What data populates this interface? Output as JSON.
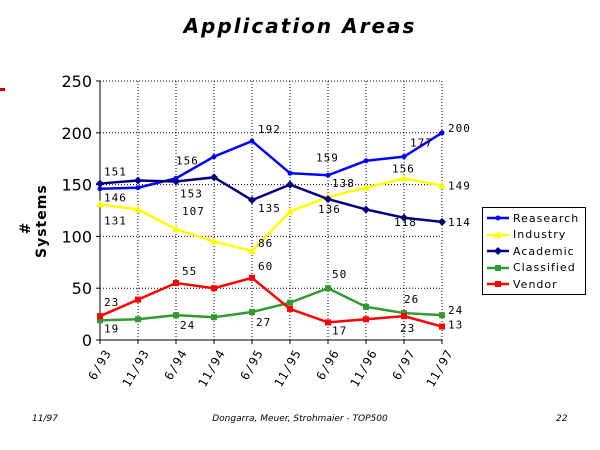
{
  "footer": {
    "left": "11/97",
    "center": "Dongarra, Meuer, Strohmaier - TOP500",
    "right": "22"
  },
  "chart_data": {
    "type": "line",
    "title": "Application Areas",
    "xlabel": "",
    "ylabel": "# Systems",
    "ylim": [
      0,
      250
    ],
    "yticks": [
      0,
      50,
      100,
      150,
      200,
      250
    ],
    "categories": [
      "6/93",
      "11/93",
      "6/94",
      "11/94",
      "6/95",
      "11/95",
      "6/96",
      "11/96",
      "6/97",
      "11/97"
    ],
    "grid": true,
    "legend_position": "right",
    "series": [
      {
        "name": "Reasearch",
        "color": "#0000ff",
        "marker": "circle",
        "values": [
          146,
          147,
          156,
          177,
          192,
          161,
          159,
          173,
          177,
          200
        ]
      },
      {
        "name": "Industry",
        "color": "#ffff00",
        "marker": "triangle",
        "values": [
          131,
          126,
          107,
          95,
          86,
          124,
          138,
          147,
          156,
          149
        ]
      },
      {
        "name": "Academic",
        "color": "#000080",
        "marker": "diamond",
        "values": [
          151,
          154,
          153,
          157,
          135,
          150,
          136,
          126,
          118,
          114
        ]
      },
      {
        "name": "Classified",
        "color": "#339933",
        "marker": "square",
        "values": [
          19,
          20,
          24,
          22,
          27,
          36,
          50,
          32,
          26,
          24
        ]
      },
      {
        "name": "Vendor",
        "color": "#ff0000",
        "marker": "square",
        "values": [
          23,
          39,
          55,
          50,
          60,
          30,
          17,
          20,
          23,
          13
        ]
      }
    ],
    "annotations": [
      {
        "series": 0,
        "index": 0,
        "text": "146"
      },
      {
        "series": 0,
        "index": 2,
        "text": "156"
      },
      {
        "series": 0,
        "index": 4,
        "text": "192"
      },
      {
        "series": 0,
        "index": 6,
        "text": "159"
      },
      {
        "series": 0,
        "index": 8,
        "text": "177"
      },
      {
        "series": 0,
        "index": 9,
        "text": "200"
      },
      {
        "series": 1,
        "index": 0,
        "text": "131"
      },
      {
        "series": 1,
        "index": 2,
        "text": "107"
      },
      {
        "series": 1,
        "index": 4,
        "text": "86"
      },
      {
        "series": 1,
        "index": 6,
        "text": "138"
      },
      {
        "series": 1,
        "index": 8,
        "text": "156"
      },
      {
        "series": 1,
        "index": 9,
        "text": "149"
      },
      {
        "series": 2,
        "index": 0,
        "text": "151"
      },
      {
        "series": 2,
        "index": 2,
        "text": "153"
      },
      {
        "series": 2,
        "index": 4,
        "text": "135"
      },
      {
        "series": 2,
        "index": 6,
        "text": "136"
      },
      {
        "series": 2,
        "index": 8,
        "text": "118"
      },
      {
        "series": 2,
        "index": 9,
        "text": "114"
      },
      {
        "series": 3,
        "index": 0,
        "text": "19"
      },
      {
        "series": 3,
        "index": 2,
        "text": "24"
      },
      {
        "series": 3,
        "index": 4,
        "text": "27"
      },
      {
        "series": 3,
        "index": 6,
        "text": "50"
      },
      {
        "series": 3,
        "index": 8,
        "text": "26"
      },
      {
        "series": 3,
        "index": 9,
        "text": "24"
      },
      {
        "series": 4,
        "index": 0,
        "text": "23"
      },
      {
        "series": 4,
        "index": 2,
        "text": "55"
      },
      {
        "series": 4,
        "index": 4,
        "text": "60"
      },
      {
        "series": 4,
        "index": 6,
        "text": "17"
      },
      {
        "series": 4,
        "index": 8,
        "text": "23"
      },
      {
        "series": 4,
        "index": 9,
        "text": "13"
      }
    ]
  }
}
